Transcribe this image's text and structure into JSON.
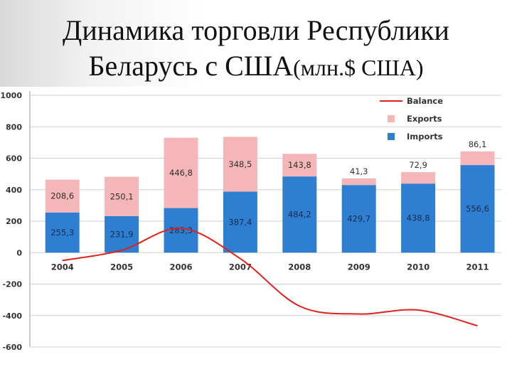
{
  "slide": {
    "title_line1": "Динамика торговли Республики",
    "title_line2": "Беларусь с США",
    "title_line2_suffix": "(млн.$ США)"
  },
  "colors": {
    "exports": "#f4b6b6",
    "imports": "#2e7fd1",
    "balance": "#e0211a",
    "grid": "#d0d0d0",
    "axis_text": "#333333",
    "label_text": "#303030",
    "label_text_on_blue": "#1b2a4a"
  },
  "chart_data": {
    "type": "bar",
    "stacked": true,
    "categories": [
      "2004",
      "2005",
      "2006",
      "2007",
      "2008",
      "2009",
      "2010",
      "2011"
    ],
    "series": [
      {
        "name": "Imports",
        "kind": "bar",
        "values": [
          255.3,
          231.9,
          283.3,
          387.4,
          484.2,
          429.7,
          438.8,
          556.6
        ],
        "labels": [
          "255,3",
          "231,9",
          "283,3",
          "387,4",
          "484,2",
          "429,7",
          "438,8",
          "556,6"
        ]
      },
      {
        "name": "Exports",
        "kind": "bar",
        "values": [
          208.6,
          250.1,
          446.8,
          348.5,
          143.8,
          41.3,
          72.9,
          86.1
        ],
        "labels": [
          "208,6",
          "250,1",
          "446,8",
          "348,5",
          "143,8",
          "41,3",
          "72,9",
          "86,1"
        ]
      },
      {
        "name": "Balance",
        "kind": "line",
        "values": [
          -50,
          15,
          155,
          -38,
          -340,
          -390,
          -365,
          -465
        ]
      }
    ],
    "legend_order": [
      "Balance",
      "Exports",
      "Imports"
    ],
    "yticks": [
      "1000",
      "800",
      "600",
      "400",
      "200",
      "0",
      "-200",
      "-400",
      "-600"
    ],
    "ylim": [
      -600,
      1000
    ],
    "ytick_step": 200,
    "grid": true,
    "legend_position": "top-right"
  }
}
